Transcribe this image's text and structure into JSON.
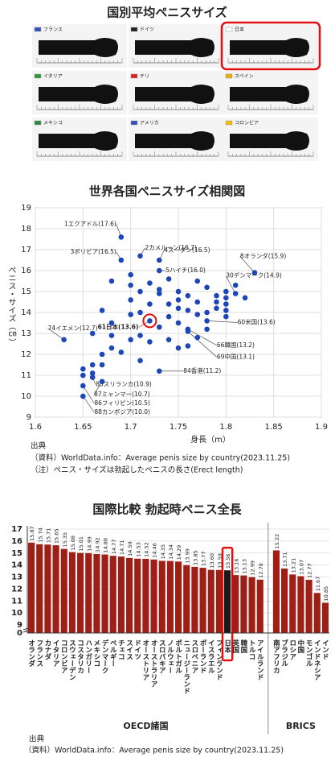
{
  "panel1": {
    "title": "国別平均ペニスサイズ",
    "countries": [
      "フランス",
      "ドイツ",
      "日本",
      "イタリア",
      "チリ",
      "スペイン",
      "メキシコ",
      "アメリカ",
      "コロンビア"
    ]
  },
  "chart_data": [
    {
      "type": "scatter",
      "title": "世界各国ペニスサイズ相関図",
      "x_label": "身長（m）",
      "y_label": "ペニス・サイズ（㎝）",
      "xlim": [
        1.6,
        1.9
      ],
      "xticks": [
        1.6,
        1.65,
        1.7,
        1.75,
        1.8,
        1.85,
        1.9
      ],
      "ylim": [
        9,
        19
      ],
      "yticks": [
        9,
        10,
        11,
        12,
        13,
        14,
        15,
        16,
        17,
        18,
        19
      ],
      "grid": true,
      "series": [
        {
          "color": "#1d47b8",
          "x": [
            1.69,
            1.71,
            1.69,
            1.73,
            1.73,
            1.83,
            1.81,
            1.63,
            1.72,
            1.78,
            1.76,
            1.76,
            1.73,
            1.66,
            1.67,
            1.65,
            1.65
          ],
          "y": [
            17.6,
            16.7,
            16.5,
            16.5,
            16.0,
            15.9,
            14.9,
            12.7,
            13.6,
            13.6,
            13.2,
            13.1,
            11.2,
            10.9,
            10.7,
            10.5,
            10.0
          ],
          "labels": [
            "1エクアドル(17.6)",
            "2カメルーン(16.7)",
            "3ボリビア(16.5)",
            "4スーダン(16.5)",
            "5ハイチ(16.0)",
            "8オランダ(15.9)",
            "30デンマーク(14.9)",
            "74イエメン(12.7)",
            "61日本(13.6)",
            "60米国(13.6)",
            "66韓国(13.2)",
            "69中国(13.1)",
            "84香港(11.2)",
            "85スリランカ(10.9)",
            "87ミャンマー(10.7)",
            "86フィリピン(10.5)",
            "88カンボジア(10.0)"
          ]
        },
        {
          "color": "#1d47b8",
          "x": [
            1.7,
            1.7,
            1.7,
            1.7,
            1.71,
            1.72,
            1.72,
            1.73,
            1.73,
            1.74,
            1.74,
            1.74,
            1.75,
            1.75,
            1.75,
            1.75,
            1.76,
            1.76,
            1.76,
            1.77,
            1.77,
            1.77,
            1.77,
            1.78,
            1.78,
            1.78,
            1.79,
            1.79,
            1.79,
            1.8,
            1.8,
            1.8,
            1.8,
            1.8,
            1.81,
            1.68,
            1.68,
            1.68,
            1.67,
            1.66,
            1.66,
            1.66,
            1.67,
            1.69,
            1.7,
            1.71,
            1.72,
            1.73,
            1.74,
            1.75,
            1.71,
            1.67,
            1.65,
            1.65,
            1.82,
            1.71,
            1.68
          ],
          "y": [
            15.8,
            15.3,
            14.6,
            13.9,
            15.0,
            14.4,
            15.4,
            15.1,
            14.9,
            15.6,
            14.4,
            13.8,
            15.0,
            14.6,
            14.2,
            13.5,
            14.8,
            14.1,
            12.4,
            15.5,
            14.5,
            13.9,
            12.8,
            15.2,
            14.0,
            13.2,
            14.8,
            14.5,
            14.2,
            15.0,
            14.7,
            14.4,
            14.1,
            13.8,
            15.3,
            12.9,
            12.3,
            13.5,
            14.1,
            13.0,
            11.5,
            11.1,
            12.0,
            12.1,
            12.7,
            12.9,
            12.6,
            13.3,
            12.7,
            12.3,
            11.7,
            11.5,
            11.0,
            11.3,
            14.7,
            14.0,
            15.5
          ]
        }
      ],
      "source": [
        "出典",
        "（資料）WorldData.info：Average penis size by country(2023.11.25)",
        "（注）ペニス・サイズは勃起したペニスの長さ(Erect length)"
      ]
    },
    {
      "type": "bar",
      "title": "国際比較 勃起時ペニス全長",
      "ylim": [
        0,
        17
      ],
      "yticks": [
        0,
        9,
        10,
        11,
        12,
        13,
        14,
        15,
        16,
        17
      ],
      "grid": true,
      "groups": [
        {
          "name": "OECD諸国",
          "categories": [
            "オランダ",
            "フランス",
            "カナダ",
            "イタリア",
            "コロンビア",
            "スウェーデン",
            "コスタリカ",
            "ハンガリー",
            "メキシコ",
            "デンマーク",
            "ベルギー",
            "チェコ",
            "スイス",
            "ドイツ",
            "オーストリア",
            "オーストラリア",
            "スロバキア",
            "ノルウェー",
            "ポルトガル",
            "ニュージーランド",
            "スロベニア",
            "ポーランド",
            "イスラエル",
            "フィンランド",
            "日本",
            "英国",
            "韓国",
            "トルコ",
            "アイルランド"
          ],
          "values": [
            15.87,
            15.74,
            15.71,
            15.65,
            15.35,
            15.08,
            15.01,
            14.99,
            14.92,
            14.88,
            14.77,
            14.71,
            14.59,
            14.53,
            14.52,
            14.46,
            14.35,
            14.34,
            14.29,
            13.99,
            13.85,
            13.77,
            13.6,
            13.59,
            13.56,
            13.16,
            13.13,
            12.99,
            12.78
          ],
          "value_labels": [
            "15.87",
            "15.74",
            "15.71",
            "15.65",
            "15.35",
            "15.08",
            "15.01",
            "14.99",
            "14.92",
            "14.88",
            "14.77",
            "14.71",
            "14.59",
            "14.53",
            "14.52",
            "14.46",
            "14.35",
            "14.34",
            "14.29",
            "13.99",
            "13.85",
            "13.77",
            "13.60",
            "13.59",
            "13.56",
            "13.16",
            "13.13",
            "12.99",
            "12.78"
          ],
          "colors": [
            "#9e1f16",
            "#9e1f16",
            "#9e1f16",
            "#9e1f16",
            "#9e1f16",
            "#9e1f16",
            "#9e1f16",
            "#9e1f16",
            "#9e1f16",
            "#9e1f16",
            "#9e1f16",
            "#9e1f16",
            "#9e1f16",
            "#9e1f16",
            "#9e1f16",
            "#9e1f16",
            "#9e1f16",
            "#9e1f16",
            "#9e1f16",
            "#9e1f16",
            "#9e1f16",
            "#9e1f16",
            "#9e1f16",
            "#9e1f16",
            "#1a1a1a",
            "#9e1f16",
            "#9e1f16",
            "#9e1f16",
            "#9e1f16"
          ]
        },
        {
          "name": "BRICS",
          "categories": [
            "南アフリカ",
            "ブラジル",
            "ロシア",
            "中国",
            "モンゴル",
            "インドネシア",
            "インド"
          ],
          "values": [
            15.22,
            13.71,
            13.21,
            13.07,
            12.77,
            11.67,
            10.85
          ],
          "value_labels": [
            "15.22",
            "13.71",
            "13.21",
            "13.07",
            "12.77",
            "11.67",
            "10.85"
          ],
          "colors": [
            "#9e1f16",
            "#9e1f16",
            "#9e1f16",
            "#9e1f16",
            "#9e1f16",
            "#9e1f16",
            "#9e1f16"
          ]
        }
      ],
      "source": [
        "出典",
        "（資料）WorldData.info：Average penis size by country(2023.11.25)"
      ]
    }
  ]
}
